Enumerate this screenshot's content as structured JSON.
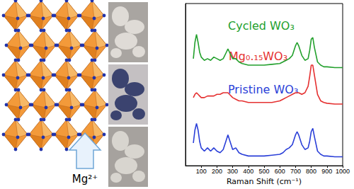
{
  "diagram": {
    "label": "Mg²⁺"
  },
  "chart_data": {
    "type": "line",
    "x_label": "Raman Shift (cm⁻¹)",
    "x": [
      50,
      60,
      70,
      80,
      90,
      100,
      120,
      140,
      160,
      180,
      200,
      220,
      240,
      260,
      270,
      280,
      300,
      320,
      340,
      360,
      400,
      450,
      500,
      550,
      600,
      620,
      640,
      660,
      680,
      700,
      710,
      720,
      740,
      760,
      780,
      790,
      800,
      810,
      820,
      840,
      860,
      880,
      900,
      950,
      1000
    ],
    "series": [
      {
        "name": "Cycled WO₃",
        "color": "#22a02c",
        "values": [
          66,
          76,
          81,
          76,
          70,
          67,
          65,
          66,
          65,
          67,
          66,
          65,
          66,
          70,
          72,
          70,
          66,
          66,
          64,
          63,
          62,
          62,
          62,
          62.5,
          63,
          64,
          65,
          66,
          68,
          74,
          76,
          74,
          68,
          65,
          66,
          71,
          78,
          79,
          73,
          64,
          62,
          61,
          61,
          60.5,
          60.5
        ]
      },
      {
        "name": "Mg₀.₁₅WO₃",
        "color": "#e53030",
        "values": [
          42,
          44,
          45,
          44,
          43,
          42,
          42,
          43,
          43,
          43,
          44,
          44,
          45,
          45,
          45,
          44,
          42,
          41,
          40,
          40,
          39,
          39,
          39,
          39,
          40,
          41,
          42,
          43,
          44,
          45,
          45,
          45,
          44,
          45,
          49,
          55,
          62,
          62,
          56,
          44,
          40,
          39,
          38.5,
          38,
          38
        ]
      },
      {
        "name": "Pristine WO₃",
        "color": "#2a3fd8",
        "values": [
          14,
          22,
          26,
          22,
          15,
          11,
          9,
          11,
          9,
          11,
          9,
          8,
          10,
          16,
          19,
          16,
          10,
          11,
          8,
          7,
          6,
          6,
          6,
          6.5,
          7,
          8,
          10,
          11,
          13,
          19,
          21,
          19,
          13,
          10,
          11,
          15,
          21,
          23,
          18,
          9,
          7,
          6,
          6,
          5.5,
          5.5
        ]
      }
    ],
    "xlim": [
      0,
      1000
    ],
    "xticks": [
      100,
      200,
      300,
      400,
      500,
      600,
      700,
      800,
      900,
      1000
    ],
    "ylim": [
      0,
      100
    ],
    "tick_labels": "x",
    "grid": false
  }
}
